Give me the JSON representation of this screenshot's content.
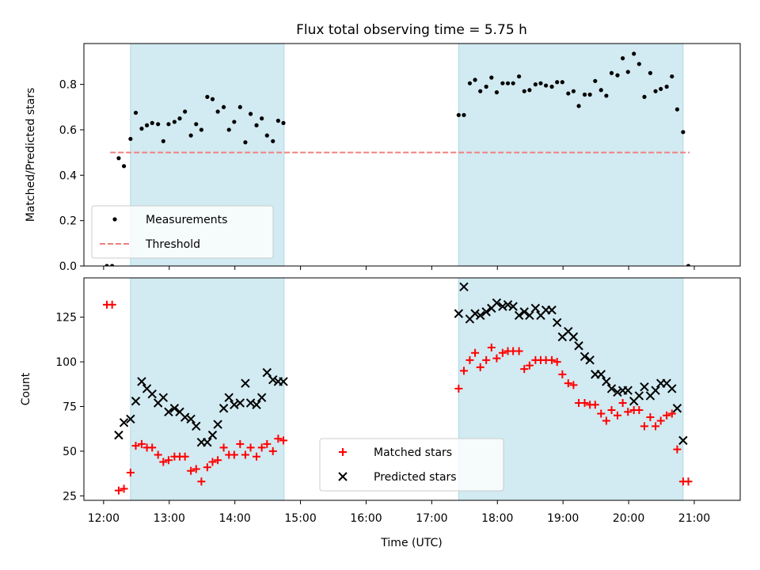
{
  "chart_data": {
    "title": "Flux total observing time = 5.75 h",
    "xlabel": "Time (UTC)",
    "x_ticks": [
      "12:00",
      "13:00",
      "14:00",
      "15:00",
      "16:00",
      "17:00",
      "18:00",
      "19:00",
      "20:00",
      "21:00"
    ],
    "x_tick_hours": [
      12,
      13,
      14,
      15,
      16,
      17,
      18,
      19,
      20,
      21
    ],
    "xlim_hours": [
      11.7,
      21.7
    ],
    "colors": {
      "band": "#add8e6",
      "measurements": "#000000",
      "threshold": "#f08080",
      "matched": "#ff0000",
      "predicted": "#000000"
    },
    "observing_windows_hours": [
      [
        12.41,
        14.75
      ],
      [
        17.41,
        20.83
      ]
    ],
    "panels": [
      {
        "type": "scatter",
        "ylabel": "Matched/Predicted stars",
        "ylim": [
          0,
          0.98
        ],
        "yticks": [
          0.0,
          0.2,
          0.4,
          0.6,
          0.8
        ],
        "ytick_labels": [
          "0.0",
          "0.2",
          "0.4",
          "0.6",
          "0.8"
        ],
        "legend_position": "lower-left",
        "threshold": {
          "name": "Threshold",
          "value": 0.5,
          "x_range_hours": [
            12.1,
            20.93
          ]
        },
        "series": [
          {
            "name": "Measurements",
            "marker": "dot",
            "points": [
              [
                12.05,
                0
              ],
              [
                12.13,
                0
              ],
              [
                12.23,
                0.475
              ],
              [
                12.31,
                0.44
              ],
              [
                12.41,
                0.56
              ],
              [
                12.49,
                0.675
              ],
              [
                12.58,
                0.605
              ],
              [
                12.66,
                0.62
              ],
              [
                12.74,
                0.63
              ],
              [
                12.83,
                0.625
              ],
              [
                12.91,
                0.55
              ],
              [
                12.99,
                0.625
              ],
              [
                13.08,
                0.635
              ],
              [
                13.16,
                0.65
              ],
              [
                13.24,
                0.68
              ],
              [
                13.33,
                0.575
              ],
              [
                13.41,
                0.625
              ],
              [
                13.49,
                0.6
              ],
              [
                13.58,
                0.745
              ],
              [
                13.66,
                0.735
              ],
              [
                13.74,
                0.68
              ],
              [
                13.83,
                0.7
              ],
              [
                13.91,
                0.6
              ],
              [
                13.99,
                0.635
              ],
              [
                14.08,
                0.7
              ],
              [
                14.16,
                0.545
              ],
              [
                14.24,
                0.67
              ],
              [
                14.33,
                0.62
              ],
              [
                14.41,
                0.65
              ],
              [
                14.49,
                0.575
              ],
              [
                14.58,
                0.55
              ],
              [
                14.66,
                0.64
              ],
              [
                14.74,
                0.63
              ],
              [
                17.41,
                0.665
              ],
              [
                17.49,
                0.665
              ],
              [
                17.58,
                0.805
              ],
              [
                17.66,
                0.82
              ],
              [
                17.74,
                0.77
              ],
              [
                17.83,
                0.79
              ],
              [
                17.91,
                0.83
              ],
              [
                17.99,
                0.765
              ],
              [
                18.08,
                0.805
              ],
              [
                18.16,
                0.805
              ],
              [
                18.24,
                0.805
              ],
              [
                18.33,
                0.835
              ],
              [
                18.41,
                0.77
              ],
              [
                18.49,
                0.775
              ],
              [
                18.58,
                0.8
              ],
              [
                18.66,
                0.805
              ],
              [
                18.74,
                0.795
              ],
              [
                18.83,
                0.79
              ],
              [
                18.91,
                0.81
              ],
              [
                18.99,
                0.81
              ],
              [
                19.08,
                0.76
              ],
              [
                19.16,
                0.77
              ],
              [
                19.24,
                0.705
              ],
              [
                19.33,
                0.755
              ],
              [
                19.41,
                0.755
              ],
              [
                19.49,
                0.815
              ],
              [
                19.58,
                0.775
              ],
              [
                19.66,
                0.75
              ],
              [
                19.74,
                0.85
              ],
              [
                19.83,
                0.84
              ],
              [
                19.91,
                0.915
              ],
              [
                19.99,
                0.855
              ],
              [
                20.08,
                0.935
              ],
              [
                20.16,
                0.89
              ],
              [
                20.24,
                0.745
              ],
              [
                20.33,
                0.85
              ],
              [
                20.41,
                0.77
              ],
              [
                20.49,
                0.78
              ],
              [
                20.58,
                0.79
              ],
              [
                20.66,
                0.835
              ],
              [
                20.74,
                0.69
              ],
              [
                20.83,
                0.59
              ],
              [
                20.91,
                0
              ]
            ]
          }
        ]
      },
      {
        "type": "scatter",
        "ylabel": "Count",
        "ylim": [
          22.5,
          147
        ],
        "yticks": [
          25,
          50,
          75,
          100,
          125
        ],
        "ytick_labels": [
          "25",
          "50",
          "75",
          "100",
          "125"
        ],
        "legend_position": "lower-center",
        "series": [
          {
            "name": "Matched stars",
            "marker": "plus",
            "points": [
              [
                12.05,
                132
              ],
              [
                12.13,
                132
              ],
              [
                12.23,
                28
              ],
              [
                12.31,
                29
              ],
              [
                12.41,
                38
              ],
              [
                12.49,
                53
              ],
              [
                12.58,
                54
              ],
              [
                12.66,
                52
              ],
              [
                12.74,
                52
              ],
              [
                12.83,
                48
              ],
              [
                12.91,
                44
              ],
              [
                12.99,
                45
              ],
              [
                13.08,
                47
              ],
              [
                13.16,
                47
              ],
              [
                13.24,
                47
              ],
              [
                13.33,
                39
              ],
              [
                13.41,
                40
              ],
              [
                13.49,
                33
              ],
              [
                13.58,
                41
              ],
              [
                13.66,
                44
              ],
              [
                13.74,
                45
              ],
              [
                13.83,
                52
              ],
              [
                13.91,
                48
              ],
              [
                13.99,
                48
              ],
              [
                14.08,
                54
              ],
              [
                14.16,
                48
              ],
              [
                14.24,
                52
              ],
              [
                14.33,
                47
              ],
              [
                14.41,
                52
              ],
              [
                14.49,
                54
              ],
              [
                14.58,
                50
              ],
              [
                14.66,
                57
              ],
              [
                14.74,
                56
              ],
              [
                17.41,
                85
              ],
              [
                17.49,
                95
              ],
              [
                17.58,
                101
              ],
              [
                17.66,
                105
              ],
              [
                17.74,
                97
              ],
              [
                17.83,
                101
              ],
              [
                17.91,
                108
              ],
              [
                17.99,
                102
              ],
              [
                18.08,
                105
              ],
              [
                18.16,
                106
              ],
              [
                18.24,
                106
              ],
              [
                18.33,
                106
              ],
              [
                18.41,
                96
              ],
              [
                18.49,
                98
              ],
              [
                18.58,
                101
              ],
              [
                18.66,
                101
              ],
              [
                18.74,
                101
              ],
              [
                18.83,
                101
              ],
              [
                18.91,
                100
              ],
              [
                18.99,
                93
              ],
              [
                19.08,
                88
              ],
              [
                19.16,
                87
              ],
              [
                19.24,
                77
              ],
              [
                19.33,
                77
              ],
              [
                19.41,
                76
              ],
              [
                19.49,
                76
              ],
              [
                19.58,
                71
              ],
              [
                19.66,
                67
              ],
              [
                19.74,
                73
              ],
              [
                19.83,
                70
              ],
              [
                19.91,
                77
              ],
              [
                19.99,
                72
              ],
              [
                20.08,
                73
              ],
              [
                20.16,
                73
              ],
              [
                20.24,
                64
              ],
              [
                20.33,
                69
              ],
              [
                20.41,
                64
              ],
              [
                20.49,
                67
              ],
              [
                20.58,
                70
              ],
              [
                20.66,
                71
              ],
              [
                20.74,
                51
              ],
              [
                20.83,
                33
              ],
              [
                20.91,
                33
              ]
            ]
          },
          {
            "name": "Predicted stars",
            "marker": "x",
            "points": [
              [
                12.23,
                59
              ],
              [
                12.31,
                66
              ],
              [
                12.41,
                68
              ],
              [
                12.49,
                78
              ],
              [
                12.58,
                89
              ],
              [
                12.66,
                85
              ],
              [
                12.74,
                82
              ],
              [
                12.83,
                77
              ],
              [
                12.91,
                80
              ],
              [
                12.99,
                72
              ],
              [
                13.08,
                74
              ],
              [
                13.16,
                72
              ],
              [
                13.24,
                69
              ],
              [
                13.33,
                68
              ],
              [
                13.41,
                64
              ],
              [
                13.49,
                55
              ],
              [
                13.58,
                55
              ],
              [
                13.66,
                59
              ],
              [
                13.74,
                65
              ],
              [
                13.83,
                74
              ],
              [
                13.91,
                80
              ],
              [
                13.99,
                76
              ],
              [
                14.08,
                77
              ],
              [
                14.16,
                88
              ],
              [
                14.24,
                77
              ],
              [
                14.33,
                76
              ],
              [
                14.41,
                80
              ],
              [
                14.49,
                94
              ],
              [
                14.58,
                90
              ],
              [
                14.66,
                89
              ],
              [
                14.74,
                89
              ],
              [
                17.41,
                127
              ],
              [
                17.49,
                142
              ],
              [
                17.58,
                124
              ],
              [
                17.66,
                127
              ],
              [
                17.74,
                126
              ],
              [
                17.83,
                128
              ],
              [
                17.91,
                130
              ],
              [
                17.99,
                133
              ],
              [
                18.08,
                131
              ],
              [
                18.16,
                132
              ],
              [
                18.24,
                131
              ],
              [
                18.33,
                126
              ],
              [
                18.41,
                128
              ],
              [
                18.49,
                126
              ],
              [
                18.58,
                130
              ],
              [
                18.66,
                126
              ],
              [
                18.74,
                129
              ],
              [
                18.83,
                129
              ],
              [
                18.91,
                122
              ],
              [
                18.99,
                114
              ],
              [
                19.08,
                117
              ],
              [
                19.16,
                114
              ],
              [
                19.24,
                109
              ],
              [
                19.33,
                103
              ],
              [
                19.41,
                101
              ],
              [
                19.49,
                93
              ],
              [
                19.58,
                93
              ],
              [
                19.66,
                89
              ],
              [
                19.74,
                85
              ],
              [
                19.83,
                83
              ],
              [
                19.91,
                84
              ],
              [
                19.99,
                84
              ],
              [
                20.08,
                78
              ],
              [
                20.16,
                81
              ],
              [
                20.24,
                86
              ],
              [
                20.33,
                81
              ],
              [
                20.41,
                84
              ],
              [
                20.49,
                88
              ],
              [
                20.58,
                88
              ],
              [
                20.66,
                85
              ],
              [
                20.74,
                74
              ],
              [
                20.83,
                56
              ]
            ]
          }
        ]
      }
    ]
  }
}
